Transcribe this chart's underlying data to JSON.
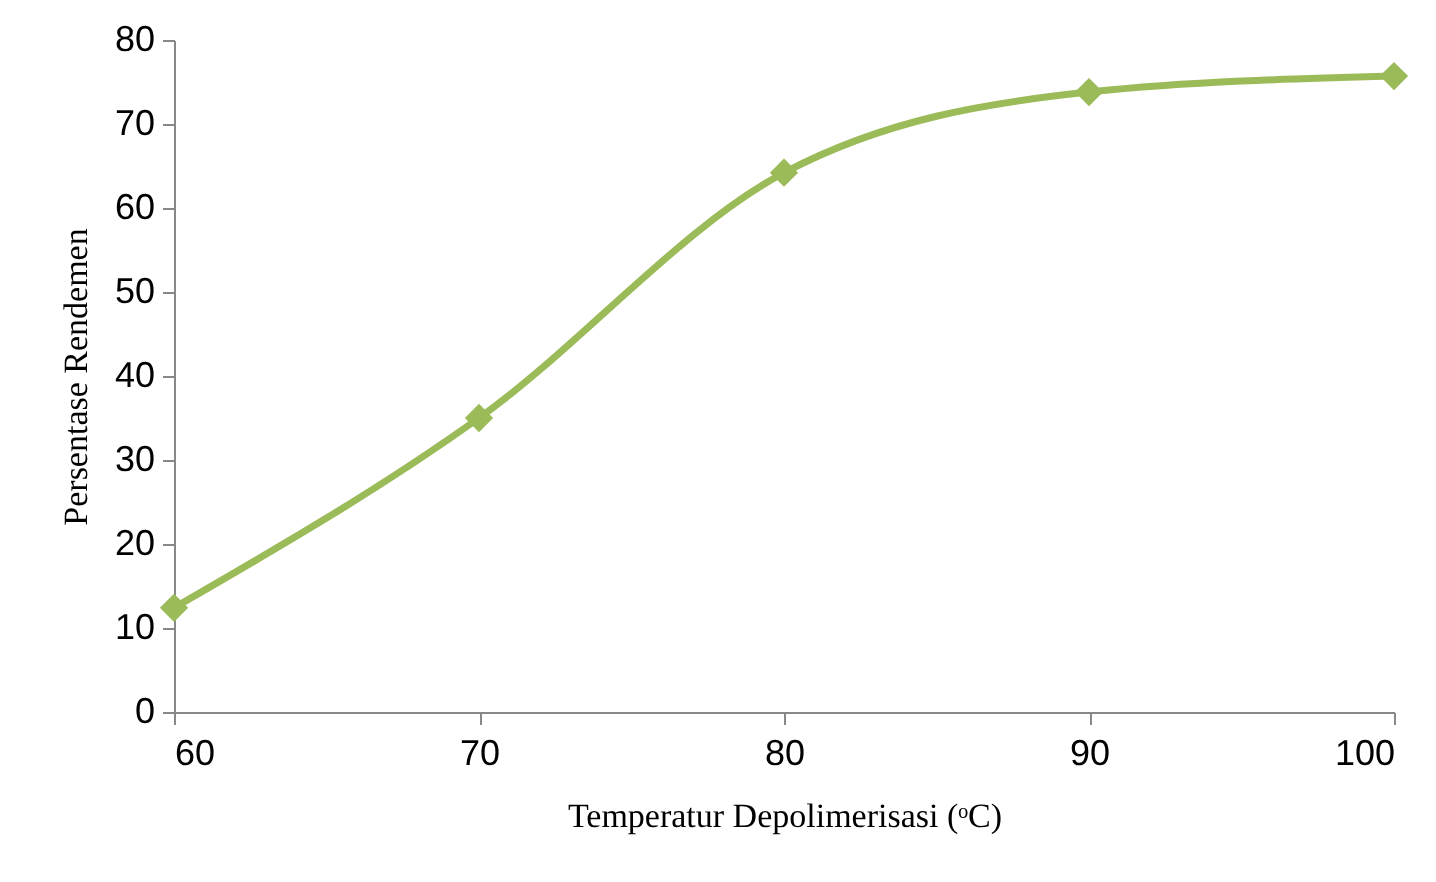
{
  "chart_data": {
    "type": "line",
    "xlabel": "Temperatur Depolimerisasi (ᵒC)",
    "ylabel": "Persentase Rendemen",
    "x": [
      60,
      70,
      80,
      90,
      100
    ],
    "series": [
      {
        "color": "#9bbb59",
        "values": [
          12.4,
          35,
          64.2,
          73.8,
          75.7
        ]
      }
    ],
    "xlim": [
      60,
      100
    ],
    "xticks": [
      60,
      70,
      80,
      90,
      100
    ],
    "ylim": [
      0,
      80
    ],
    "yticks": [
      0,
      10,
      20,
      30,
      40,
      50,
      60,
      70,
      80
    ],
    "grid": false,
    "legend": false,
    "marker": "diamond",
    "line_style": "solid"
  }
}
